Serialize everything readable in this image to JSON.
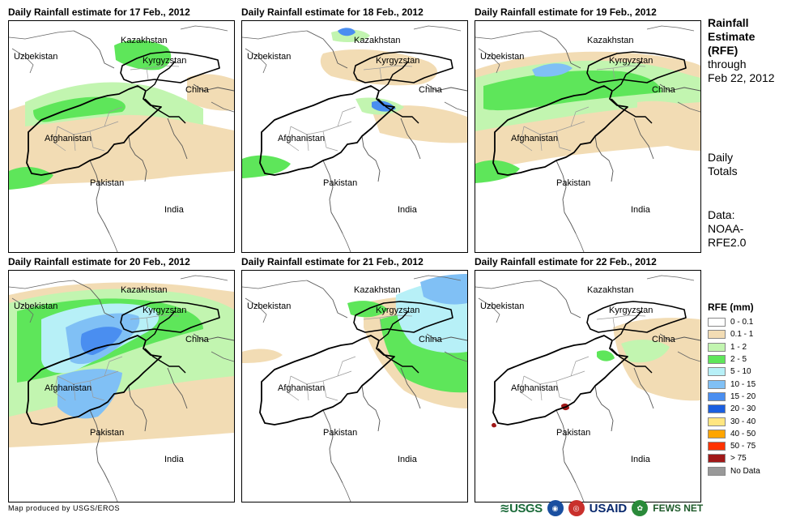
{
  "panels": [
    {
      "title": "Daily Rainfall estimate for 17 Feb., 2012",
      "date": "17 Feb., 2012"
    },
    {
      "title": "Daily Rainfall estimate for 18 Feb., 2012",
      "date": "18 Feb., 2012"
    },
    {
      "title": "Daily Rainfall estimate for 19 Feb., 2012",
      "date": "19 Feb., 2012"
    },
    {
      "title": "Daily Rainfall estimate for 20 Feb., 2012",
      "date": "20 Feb., 2012"
    },
    {
      "title": "Daily Rainfall estimate for 21 Feb., 2012",
      "date": "21 Feb., 2012"
    },
    {
      "title": "Daily Rainfall estimate for 22 Feb., 2012",
      "date": "22 Feb., 2012"
    }
  ],
  "map_labels": {
    "kazakhstan": "Kazakhstan",
    "uzbekistan": "Uzbekistan",
    "kyrgyzstan": "Kyrgyzstan",
    "china": "China",
    "afghanistan": "Afghanistan",
    "pakistan": "Pakistan",
    "india": "India"
  },
  "side": {
    "title_lines": [
      "Rainfall",
      "Estimate",
      "(RFE)"
    ],
    "through_lines": [
      "through",
      "Feb 22, 2012"
    ],
    "totals_lines": [
      "Daily",
      "Totals"
    ],
    "data_lines": [
      "Data:",
      "NOAA-",
      "RFE2.0"
    ]
  },
  "legend": {
    "title": "RFE (mm)",
    "items": [
      {
        "label": "0 - 0.1",
        "color": "#ffffff"
      },
      {
        "label": "0.1 - 1",
        "color": "#f2dcb4"
      },
      {
        "label": "1 - 2",
        "color": "#c2f5b0"
      },
      {
        "label": "2 - 5",
        "color": "#5ee65a"
      },
      {
        "label": "5 - 10",
        "color": "#b7f0f7"
      },
      {
        "label": "10 - 15",
        "color": "#80c0f5"
      },
      {
        "label": "15 - 20",
        "color": "#4a8ef0"
      },
      {
        "label": "20 - 30",
        "color": "#1a5ee0"
      },
      {
        "label": "30 - 40",
        "color": "#ffe680"
      },
      {
        "label": "40 - 50",
        "color": "#ffa500"
      },
      {
        "label": "50 - 75",
        "color": "#ff3300"
      },
      {
        "label": "> 75",
        "color": "#a01818"
      },
      {
        "label": "No Data",
        "color": "#999999"
      }
    ]
  },
  "credit": "Map produced by USGS/EROS",
  "logos": {
    "usgs": "USGS",
    "noaa": "NOAA",
    "usaid": "USAID",
    "fews": "FEWS NET"
  }
}
